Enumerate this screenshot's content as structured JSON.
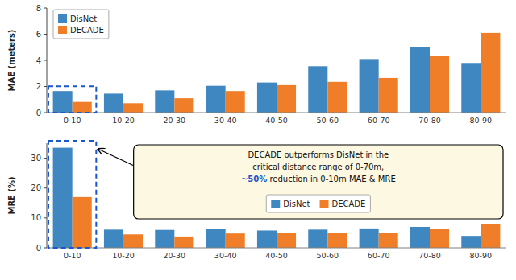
{
  "chart_data": [
    {
      "type": "bar",
      "y_label": "MAE (meters)",
      "categories": [
        "0-10",
        "10-20",
        "20-30",
        "30-40",
        "40-50",
        "50-60",
        "60-70",
        "70-80",
        "80-90"
      ],
      "series": [
        {
          "name": "DisNet",
          "color": "#3f87c0",
          "values": [
            1.65,
            1.45,
            1.7,
            2.05,
            2.3,
            3.55,
            4.1,
            5.0,
            3.8
          ]
        },
        {
          "name": "DECADE",
          "color": "#f07e28",
          "values": [
            0.82,
            0.72,
            1.1,
            1.65,
            2.1,
            2.35,
            2.65,
            4.35,
            6.1
          ]
        }
      ],
      "ylim": [
        0,
        8
      ],
      "yticks": [
        0,
        2,
        4,
        6,
        8
      ],
      "legend": "upper left",
      "grid": false
    },
    {
      "type": "bar",
      "y_label": "MRE (%)",
      "categories": [
        "0-10",
        "10-20",
        "20-30",
        "30-40",
        "40-50",
        "50-60",
        "60-70",
        "70-80",
        "80-90"
      ],
      "series": [
        {
          "name": "DisNet",
          "color": "#3f87c0",
          "values": [
            33.5,
            6.1,
            6.0,
            6.2,
            5.8,
            6.1,
            6.5,
            7.0,
            4.0
          ]
        },
        {
          "name": "DECADE",
          "color": "#f07e28",
          "values": [
            17.0,
            4.5,
            3.8,
            4.8,
            5.0,
            5.0,
            5.0,
            6.2,
            8.0
          ]
        }
      ],
      "ylim": [
        0,
        35
      ],
      "yticks": [
        0,
        10,
        20,
        30
      ],
      "legend": "lower center",
      "grid": false,
      "annotations": [
        "DECADE outperforms DisNet in the",
        "critical distance range of 0-70m,",
        "~50%",
        " reduction in 0-10m MAE & MRE"
      ]
    }
  ]
}
